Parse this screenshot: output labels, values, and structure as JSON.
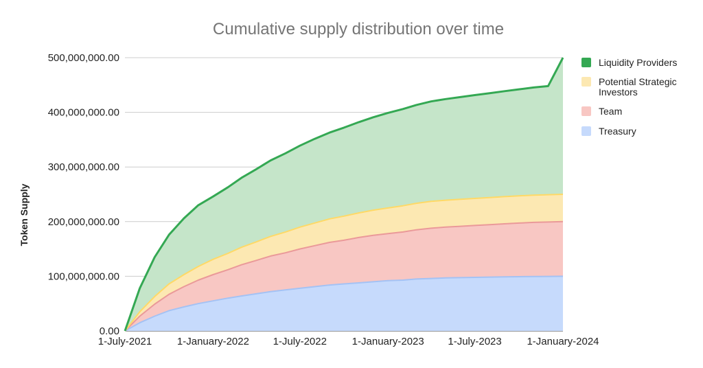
{
  "chart_data": {
    "type": "area",
    "stacked": true,
    "title": "Cumulative supply distribution over time",
    "xlabel": "",
    "ylabel": "Token Supply",
    "x": [
      "2021-07-01",
      "2021-08-01",
      "2021-09-01",
      "2021-10-01",
      "2021-11-01",
      "2021-12-01",
      "2022-01-01",
      "2022-02-01",
      "2022-03-01",
      "2022-04-01",
      "2022-05-01",
      "2022-06-01",
      "2022-07-01",
      "2022-08-01",
      "2022-09-01",
      "2022-10-01",
      "2022-11-01",
      "2022-12-01",
      "2023-01-01",
      "2023-02-01",
      "2023-03-01",
      "2023-04-01",
      "2023-05-01",
      "2023-06-01",
      "2023-07-01",
      "2023-08-01",
      "2023-09-01",
      "2023-10-01",
      "2023-11-01",
      "2023-12-01",
      "2024-01-01"
    ],
    "x_ticks": [
      "1-July-2021",
      "1-January-2022",
      "1-July-2022",
      "1-January-2023",
      "1-July-2023",
      "1-January-2024"
    ],
    "y_ticks": [
      "0.00",
      "100,000,000.00",
      "200,000,000.00",
      "300,000,000.00",
      "400,000,000.00",
      "500,000,000.00"
    ],
    "ylim": [
      0,
      500000000
    ],
    "grid": true,
    "legend_position": "right",
    "series": [
      {
        "name": "Treasury",
        "color": "#c6dafc",
        "line_color": "#a4c2f4",
        "values": [
          0,
          15000000,
          27000000,
          37000000,
          44000000,
          50000000,
          55000000,
          60000000,
          64000000,
          68000000,
          72000000,
          75000000,
          78000000,
          81000000,
          84000000,
          86000000,
          88000000,
          90000000,
          92000000,
          93000000,
          95000000,
          96000000,
          97000000,
          97500000,
          98000000,
          98500000,
          99000000,
          99300000,
          99600000,
          99800000,
          100000000
        ]
      },
      {
        "name": "Team",
        "color": "#f8c7c3",
        "line_color": "#ea9999",
        "values": [
          0,
          12000000,
          22000000,
          30000000,
          37000000,
          43000000,
          48000000,
          52000000,
          57000000,
          61000000,
          65000000,
          68000000,
          72000000,
          75000000,
          78000000,
          80000000,
          83000000,
          85000000,
          86000000,
          88000000,
          90000000,
          92000000,
          93000000,
          94000000,
          95000000,
          96000000,
          97000000,
          98000000,
          99000000,
          99500000,
          100000000
        ]
      },
      {
        "name": "Potential Strategic Investors",
        "color": "#fce8b2",
        "line_color": "#ffd966",
        "values": [
          0,
          8000000,
          14000000,
          19000000,
          22000000,
          25000000,
          28000000,
          30000000,
          32000000,
          34000000,
          36000000,
          38000000,
          40000000,
          41500000,
          43000000,
          44000000,
          45000000,
          46000000,
          47000000,
          48000000,
          48500000,
          49000000,
          49200000,
          49400000,
          49500000,
          49600000,
          49700000,
          49800000,
          49900000,
          50000000,
          50000000
        ]
      },
      {
        "name": "Liquidity Providers",
        "color": "#c5e5c9",
        "line_color": "#34a853",
        "values": [
          0,
          43000000,
          72000000,
          90000000,
          103000000,
          112000000,
          115000000,
          121000000,
          127000000,
          133000000,
          139000000,
          144000000,
          149000000,
          154000000,
          158000000,
          162000000,
          166000000,
          170000000,
          174000000,
          177000000,
          180000000,
          183000000,
          185000000,
          187000000,
          189000000,
          191000000,
          193000000,
          195000000,
          197000000,
          198700000,
          250000000
        ]
      }
    ],
    "legend_order": [
      "Liquidity Providers",
      "Potential Strategic Investors",
      "Team",
      "Treasury"
    ]
  }
}
